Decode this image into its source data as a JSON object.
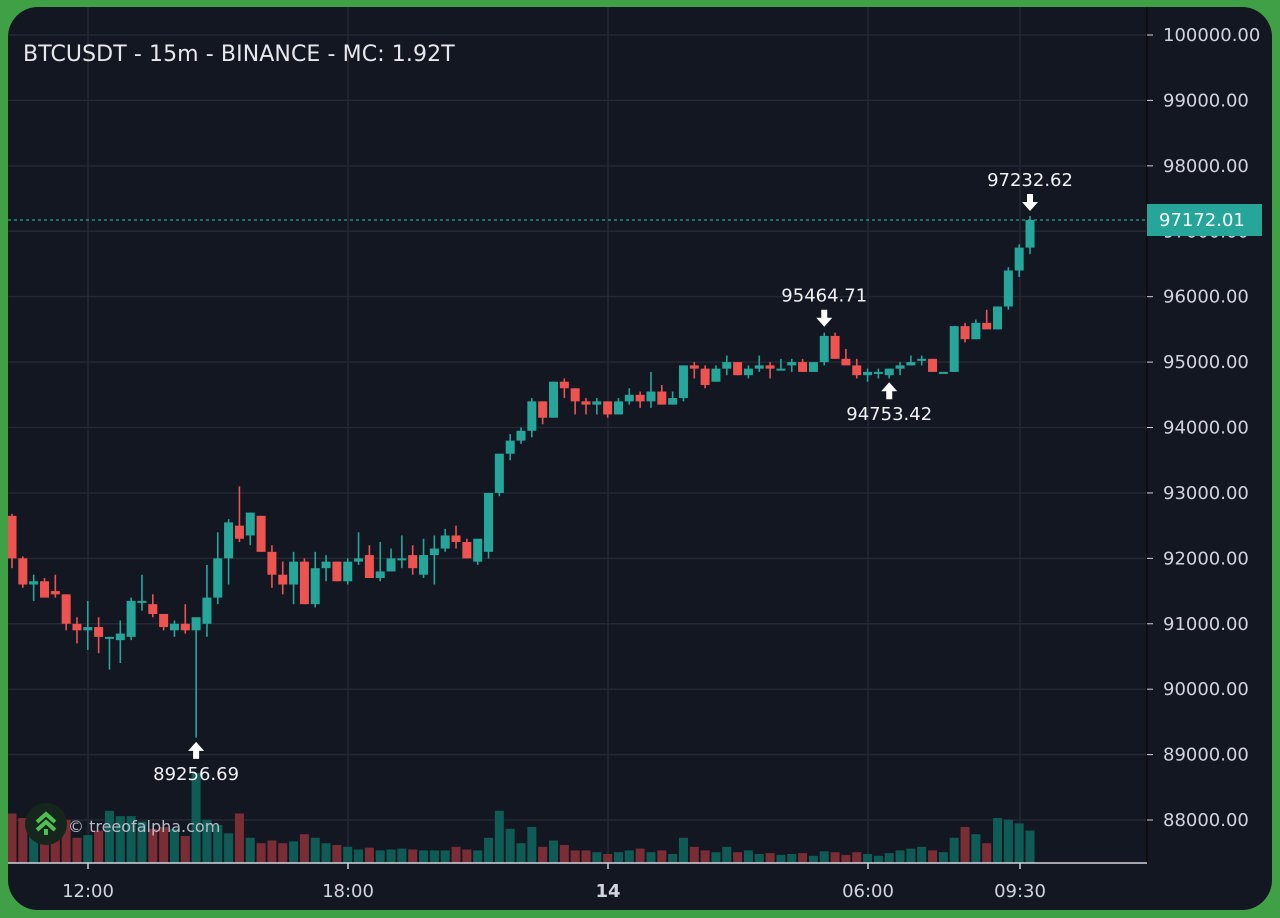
{
  "header": {
    "title": "BTCUSDT - 15m - BINANCE - MC: 1.92T"
  },
  "watermark": {
    "text": "© treeofalpha.com",
    "icon": "tree-chevrons-up-icon"
  },
  "colors": {
    "background": "#131722",
    "frame": "#3fa046",
    "up": "#26a69a",
    "down": "#ef5350",
    "volume_up": "#0f5b55",
    "volume_down": "#7a2d35",
    "grid": "#242833",
    "price_line": "#26a69a"
  },
  "chart_data": {
    "type": "candlestick",
    "title": "BTCUSDT - 15m - BINANCE - MC: 1.92T",
    "xlabel": "",
    "ylabel": "",
    "ylim": [
      87300,
      100500
    ],
    "grid": true,
    "y_ticks": [
      "100000.00",
      "99000.00",
      "98000.00",
      "97000.00",
      "96000.00",
      "95000.00",
      "94000.00",
      "93000.00",
      "92000.00",
      "91000.00",
      "90000.00",
      "89000.00",
      "88000.00"
    ],
    "x_ticks": [
      {
        "label": "12:00",
        "x": 88,
        "bold": false
      },
      {
        "label": "18:00",
        "x": 348,
        "bold": false
      },
      {
        "label": "14",
        "x": 608,
        "bold": true
      },
      {
        "label": "06:00",
        "x": 868,
        "bold": false
      },
      {
        "label": "09:30",
        "x": 1020,
        "bold": false
      }
    ],
    "last_price": "97172.01",
    "last_price_value": 97172.01,
    "annotations": [
      {
        "label": "97232.62",
        "type": "high",
        "price": 97232.62,
        "index": 94
      },
      {
        "label": "95464.71",
        "type": "high",
        "price": 95464.71,
        "index": 75
      },
      {
        "label": "94753.42",
        "type": "low",
        "price": 94753.42,
        "index": 81
      },
      {
        "label": "89256.69",
        "type": "low",
        "price": 89256.69,
        "index": 17
      }
    ],
    "x0": 12,
    "step": 10.83,
    "candles": [
      [
        92650,
        92680,
        91850,
        92000,
        55
      ],
      [
        92000,
        92030,
        91550,
        91600,
        50
      ],
      [
        91600,
        91750,
        91350,
        91650,
        34
      ],
      [
        91650,
        91700,
        91450,
        91400,
        42
      ],
      [
        91500,
        91750,
        91400,
        91450,
        36
      ],
      [
        91450,
        91450,
        90900,
        91000,
        48
      ],
      [
        91000,
        91100,
        90700,
        90900,
        28
      ],
      [
        90900,
        91350,
        90600,
        90950,
        31
      ],
      [
        90950,
        91100,
        90550,
        90800,
        36
      ],
      [
        90800,
        90800,
        90300,
        90800,
        58
      ],
      [
        90750,
        91050,
        90400,
        90850,
        52
      ],
      [
        90800,
        91400,
        90750,
        91350,
        52
      ],
      [
        91350,
        91750,
        91200,
        91350,
        46
      ],
      [
        91300,
        91450,
        91100,
        91150,
        38
      ],
      [
        91150,
        91150,
        90900,
        90950,
        40
      ],
      [
        90900,
        91050,
        90800,
        91000,
        38
      ],
      [
        91000,
        91300,
        90850,
        90900,
        30
      ],
      [
        90900,
        91000,
        89260,
        91100,
        100
      ],
      [
        91000,
        91900,
        90800,
        91400,
        48
      ],
      [
        91400,
        92400,
        91300,
        92000,
        42
      ],
      [
        92000,
        92600,
        91600,
        92550,
        33
      ],
      [
        92500,
        93100,
        92250,
        92300,
        55
      ],
      [
        92350,
        92700,
        92200,
        92700,
        28
      ],
      [
        92650,
        92650,
        92100,
        92100,
        22
      ],
      [
        92100,
        92200,
        91550,
        91750,
        25
      ],
      [
        91750,
        91950,
        91450,
        91600,
        22
      ],
      [
        91600,
        92100,
        91300,
        91950,
        24
      ],
      [
        91950,
        92000,
        91300,
        91300,
        32
      ],
      [
        91300,
        92100,
        91250,
        91850,
        28
      ],
      [
        91850,
        92050,
        91650,
        91950,
        22
      ],
      [
        91950,
        91950,
        91650,
        91650,
        20
      ],
      [
        91650,
        92000,
        91600,
        91950,
        18
      ],
      [
        91950,
        92400,
        91900,
        92000,
        15
      ],
      [
        92050,
        92200,
        91700,
        91700,
        17
      ],
      [
        91700,
        92250,
        91650,
        91800,
        14
      ],
      [
        91800,
        92150,
        91800,
        92000,
        15
      ],
      [
        92000,
        92350,
        91850,
        92000,
        16
      ],
      [
        92050,
        92200,
        91750,
        91850,
        15
      ],
      [
        91750,
        92300,
        91700,
        92050,
        14
      ],
      [
        92050,
        92350,
        91600,
        92150,
        14
      ],
      [
        92150,
        92450,
        92100,
        92350,
        14
      ],
      [
        92350,
        92500,
        92150,
        92250,
        18
      ],
      [
        92250,
        92300,
        92000,
        92000,
        15
      ],
      [
        91950,
        92250,
        91900,
        92300,
        14
      ],
      [
        92100,
        93000,
        92000,
        93000,
        28
      ],
      [
        93000,
        93600,
        92950,
        93600,
        58
      ],
      [
        93600,
        93900,
        93500,
        93800,
        38
      ],
      [
        93800,
        94000,
        93750,
        93950,
        22
      ],
      [
        93950,
        94450,
        93850,
        94400,
        40
      ],
      [
        94400,
        94400,
        94050,
        94150,
        18
      ],
      [
        94150,
        94700,
        94150,
        94700,
        25
      ],
      [
        94700,
        94750,
        94450,
        94600,
        20
      ],
      [
        94600,
        94600,
        94200,
        94400,
        14
      ],
      [
        94400,
        94450,
        94200,
        94350,
        14
      ],
      [
        94350,
        94450,
        94200,
        94400,
        12
      ],
      [
        94400,
        94400,
        94150,
        94200,
        10
      ],
      [
        94200,
        94450,
        94200,
        94400,
        12
      ],
      [
        94400,
        94600,
        94350,
        94500,
        14
      ],
      [
        94500,
        94550,
        94300,
        94400,
        16
      ],
      [
        94400,
        94850,
        94300,
        94550,
        12
      ],
      [
        94550,
        94650,
        94350,
        94350,
        14
      ],
      [
        94350,
        94550,
        94350,
        94450,
        10
      ],
      [
        94450,
        94950,
        94400,
        94950,
        28
      ],
      [
        94950,
        95000,
        94750,
        94900,
        18
      ],
      [
        94900,
        94950,
        94600,
        94650,
        14
      ],
      [
        94700,
        94950,
        94700,
        94900,
        12
      ],
      [
        94900,
        95100,
        94800,
        95000,
        18
      ],
      [
        95000,
        95000,
        94800,
        94800,
        12
      ],
      [
        94800,
        94950,
        94750,
        94900,
        14
      ],
      [
        94900,
        95100,
        94850,
        94950,
        10
      ],
      [
        94950,
        95000,
        94750,
        94900,
        11
      ],
      [
        94900,
        95050,
        94900,
        94900,
        9
      ],
      [
        94950,
        95050,
        94850,
        95000,
        10
      ],
      [
        95000,
        95050,
        94850,
        94850,
        11
      ],
      [
        94850,
        95000,
        94850,
        95000,
        8
      ],
      [
        95000,
        95450,
        94950,
        95400,
        13
      ],
      [
        95400,
        95450,
        95050,
        95050,
        12
      ],
      [
        95050,
        95200,
        95000,
        94950,
        9
      ],
      [
        94950,
        95050,
        94750,
        94800,
        12
      ],
      [
        94800,
        94900,
        94700,
        94850,
        10
      ],
      [
        94850,
        94900,
        94750,
        94850,
        8
      ],
      [
        94800,
        94900,
        94750,
        94900,
        11
      ],
      [
        94900,
        95000,
        94800,
        94950,
        14
      ],
      [
        94950,
        95100,
        94950,
        95000,
        16
      ],
      [
        95050,
        95100,
        94950,
        95050,
        18
      ],
      [
        95050,
        95050,
        94850,
        94850,
        14
      ],
      [
        94850,
        94850,
        94850,
        94850,
        12
      ],
      [
        94850,
        95550,
        94850,
        95550,
        28
      ],
      [
        95550,
        95600,
        95300,
        95350,
        40
      ],
      [
        95350,
        95650,
        95350,
        95600,
        32
      ],
      [
        95600,
        95800,
        95600,
        95500,
        22
      ],
      [
        95500,
        95850,
        95500,
        95850,
        50
      ],
      [
        95850,
        96450,
        95800,
        96400,
        48
      ],
      [
        96400,
        96800,
        96300,
        96750,
        44
      ],
      [
        96750,
        97232,
        96650,
        97172,
        36
      ]
    ]
  }
}
